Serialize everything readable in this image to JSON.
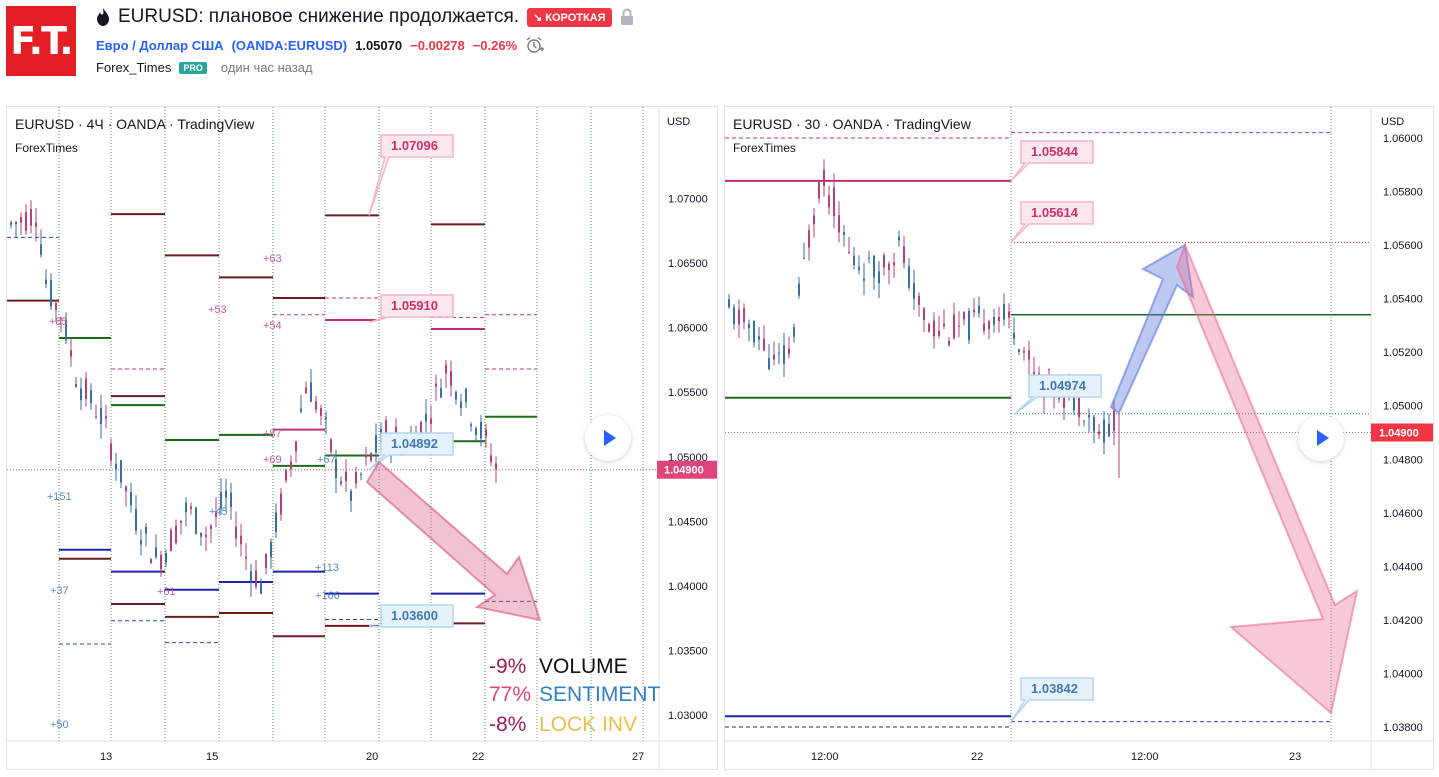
{
  "header": {
    "logo_text": "F.T.",
    "title": "EURUSD: плановое снижение продолжается.",
    "badge": "↘ КОРОТКАЯ",
    "symbol_name": "Евро / Доллар США",
    "symbol_code": "(OANDA:EURUSD)",
    "price": "1.05070",
    "change": "−0.00278",
    "change_pct": "−0.26%",
    "author": "Forex_Times",
    "author_badge": "PRO",
    "time": "один час назад",
    "icons": [
      "flame-icon",
      "lock-icon",
      "alarm-clock-icon"
    ],
    "accent_color": "#2962ff",
    "short_color": "#f23645"
  },
  "chart_left": {
    "legend": "EURUSD · 4Ч · OANDA · TradingView",
    "watermark": "ForexTimes",
    "currency": "USD",
    "current_price_label": "1.04900",
    "current_price_color": "#e0447a",
    "yticks": [
      "1.07000",
      "1.06500",
      "1.06000",
      "1.05500",
      "1.05000",
      "1.04500",
      "1.04000",
      "1.03500",
      "1.03000"
    ],
    "xticks": [
      "13",
      "15",
      "20",
      "22",
      "27"
    ],
    "labels": [
      {
        "text": "1.07096",
        "color": "#d0306a"
      },
      {
        "text": "1.05910",
        "color": "#d0306a"
      },
      {
        "text": "1.04892",
        "color": "#3f79b5"
      },
      {
        "text": "1.03600",
        "color": "#3f79b5"
      }
    ],
    "annotations": [
      {
        "text": "+63",
        "color": "#c55aa8"
      },
      {
        "text": "+53",
        "color": "#c55aa8"
      },
      {
        "text": "+54",
        "color": "#c55aa8"
      },
      {
        "text": "+85",
        "color": "#c55aa8"
      },
      {
        "text": "+87",
        "color": "#c55aa8"
      },
      {
        "text": "+69",
        "color": "#c55aa8"
      },
      {
        "text": "+67",
        "color": "#5a8ac5"
      },
      {
        "text": "+151",
        "color": "#5a8ac5"
      },
      {
        "text": "+45",
        "color": "#5a8ac5"
      },
      {
        "text": "+113",
        "color": "#5a8ac5"
      },
      {
        "text": "+166",
        "color": "#5a8ac5"
      },
      {
        "text": "+61",
        "color": "#c55aa8"
      },
      {
        "text": "+37",
        "color": "#5a8ac5"
      },
      {
        "text": "+50",
        "color": "#5a8ac5"
      }
    ],
    "stats": [
      {
        "pct": "-9%",
        "label": "VOLUME",
        "pct_color": "#a01a58",
        "label_color": "#111111"
      },
      {
        "pct": "77%",
        "label": "SENTIMENT",
        "pct_color": "#e0447a",
        "label_color": "#2f7fc9"
      },
      {
        "pct": "-8%",
        "label": "LOCK INV",
        "pct_color": "#a01a58",
        "label_color": "#e8c14a"
      }
    ]
  },
  "chart_right": {
    "legend": "EURUSD · 30 · OANDA · TradingView",
    "watermark": "ForexTimes",
    "currency": "USD",
    "current_price_label": "1.04900",
    "current_price_color": "#f23645",
    "yticks": [
      "1.06000",
      "1.05800",
      "1.05600",
      "1.05400",
      "1.05200",
      "1.05000",
      "1.04800",
      "1.04600",
      "1.04400",
      "1.04200",
      "1.04000",
      "1.03800"
    ],
    "xticks": [
      "12:00",
      "22",
      "12:00",
      "23"
    ],
    "labels": [
      {
        "text": "1.05844",
        "color": "#d0306a"
      },
      {
        "text": "1.05614",
        "color": "#d0306a"
      },
      {
        "text": "1.04974",
        "color": "#3f79b5"
      },
      {
        "text": "1.03842",
        "color": "#3f79b5"
      }
    ]
  }
}
